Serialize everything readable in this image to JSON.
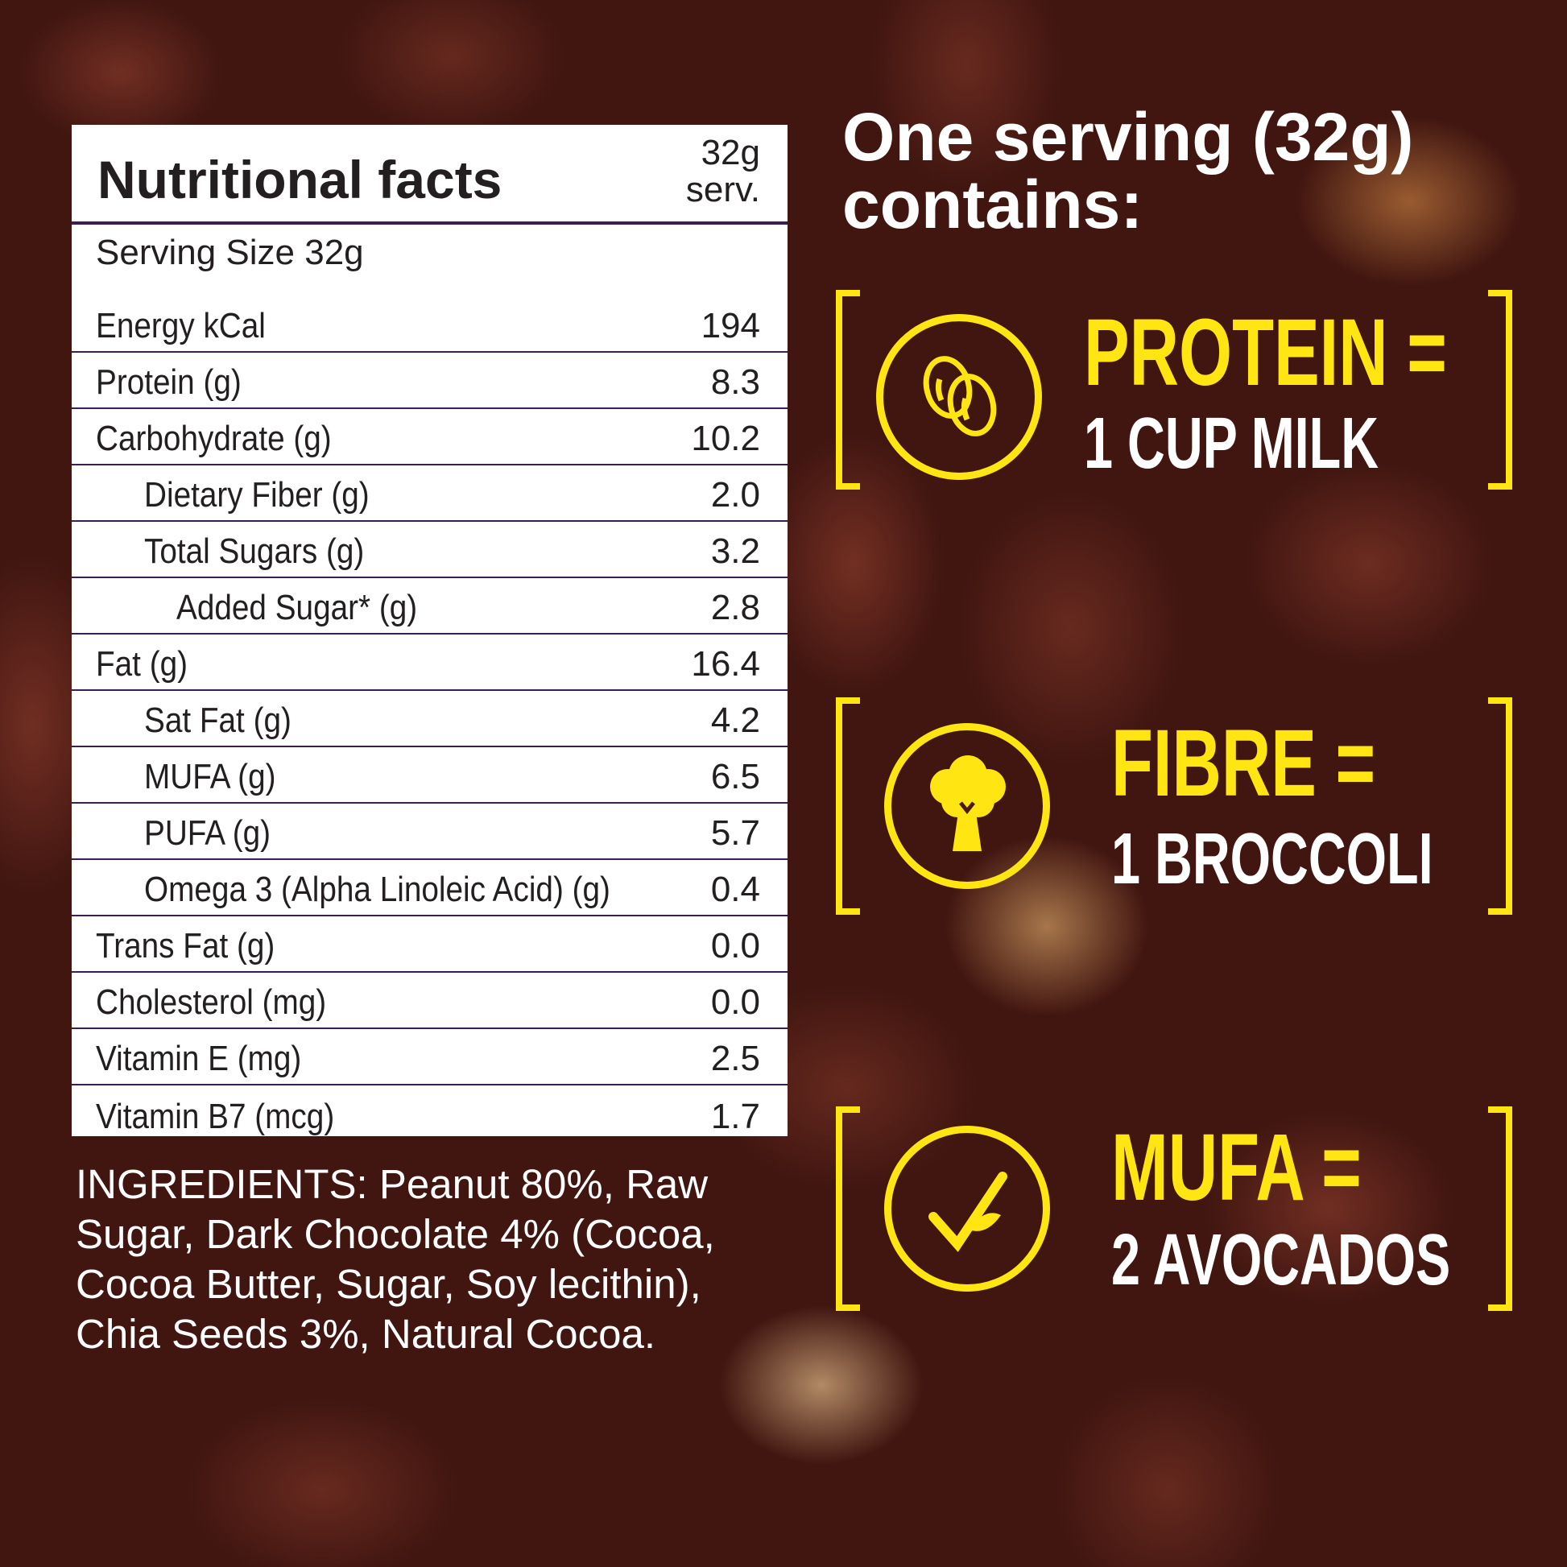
{
  "table": {
    "title": "Nutritional facts",
    "serv_line1": "32g",
    "serv_line2": "serv.",
    "serving_size": "Serving Size 32g",
    "rows": [
      {
        "label": "Energy kCal",
        "value": "194",
        "indent": 0
      },
      {
        "label": "Protein (g)",
        "value": "8.3",
        "indent": 0
      },
      {
        "label": "Carbohydrate (g)",
        "value": "10.2",
        "indent": 0
      },
      {
        "label": "Dietary Fiber (g)",
        "value": "2.0",
        "indent": 1
      },
      {
        "label": "Total Sugars (g)",
        "value": "3.2",
        "indent": 1
      },
      {
        "label": "Added Sugar* (g)",
        "value": "2.8",
        "indent": 2
      },
      {
        "label": "Fat (g)",
        "value": "16.4",
        "indent": 0
      },
      {
        "label": "Sat Fat (g)",
        "value": "4.2",
        "indent": 1
      },
      {
        "label": "MUFA (g)",
        "value": "6.5",
        "indent": 1
      },
      {
        "label": "PUFA (g)",
        "value": "5.7",
        "indent": 1
      },
      {
        "label": "Omega 3 (Alpha Linoleic Acid) (g)",
        "value": "0.4",
        "indent": 1
      },
      {
        "label": "Trans Fat (g)",
        "value": "0.0",
        "indent": 0
      },
      {
        "label": "Cholesterol (mg)",
        "value": "0.0",
        "indent": 0
      },
      {
        "label": "Vitamin E (mg)",
        "value": "2.5",
        "indent": 0
      },
      {
        "label": "Vitamin B7 (mcg)",
        "value": "1.7",
        "indent": 0
      }
    ]
  },
  "ingredients": "INGREDIENTS: Peanut 80%, Raw Sugar, Dark Chocolate 4% (Cocoa, Cocoa Butter, Sugar, Soy lecithin), Chia Seeds 3%, Natural Cocoa.",
  "heading": {
    "line1": "One serving (32g)",
    "line2": "contains:"
  },
  "highlights": [
    {
      "title": "PROTEIN =",
      "equiv": "1 CUP MILK",
      "icon": "eggs-icon"
    },
    {
      "title": "FIBRE =",
      "equiv": "1 BROCCOLI",
      "icon": "broccoli-icon"
    },
    {
      "title": "MUFA =",
      "equiv": "2 AVOCADOS",
      "icon": "check-leaf-icon"
    }
  ],
  "colors": {
    "accent": "#ffe512",
    "divider": "#3d1d52",
    "text": "#231f20"
  }
}
